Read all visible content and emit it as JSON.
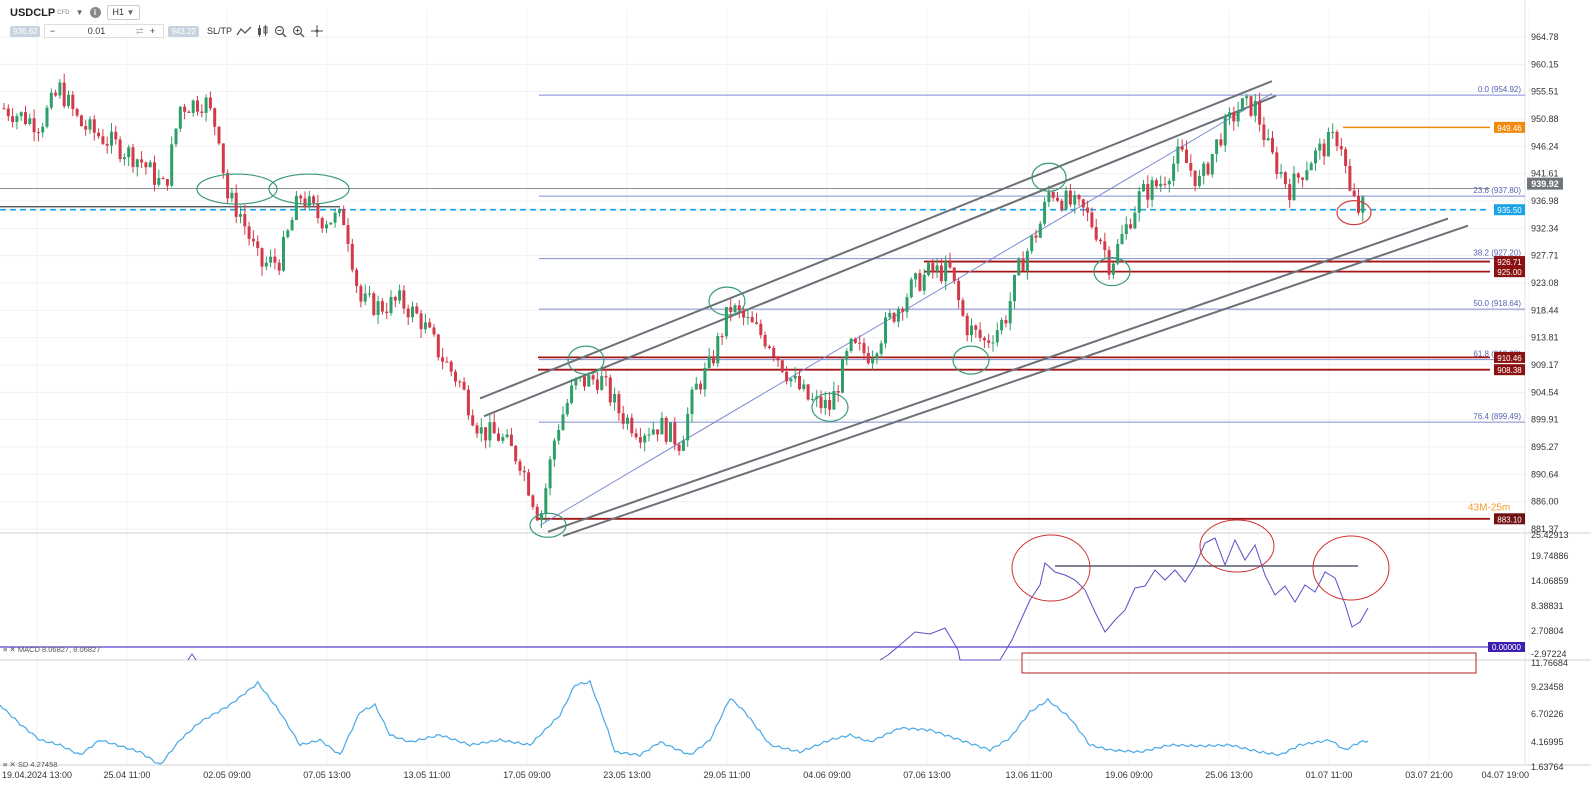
{
  "toolbar": {
    "symbol": "USDCLP",
    "symbol_suffix": "CFD",
    "dropdown_arrow": "▼",
    "info_icon": "i",
    "timeframe": "H1",
    "sell_price": "936.62",
    "buy_price": "943.22",
    "quantity": "0.01",
    "minus": "−",
    "plus": "+",
    "sltp_label": "SL/TP",
    "tools": [
      "line-chart-icon",
      "candle-chart-icon",
      "zoom-out-icon",
      "zoom-in-icon",
      "crosshair-icon"
    ]
  },
  "price_axis": [
    "964.78",
    "960.15",
    "955.51",
    "950.88",
    "946.24",
    "941.61",
    "936.98",
    "932.34",
    "927.71",
    "923.08",
    "918.44",
    "913.81",
    "909.17",
    "904.54",
    "899.91",
    "895.27",
    "890.64",
    "886.00",
    "881.37"
  ],
  "rsi_axis": [
    "25.42913",
    "19.74886",
    "14.06859",
    "8.38831",
    "2.70804",
    "-2.97224"
  ],
  "sd_axis": [
    "11.76684",
    "9.23458",
    "6.70226",
    "4.16995",
    "1.63764"
  ],
  "time_axis": [
    "19.04.2024 13:00",
    "25.04 11:00",
    "02.05 09:00",
    "07.05 13:00",
    "13.05 11:00",
    "17.05 09:00",
    "23.05 13:00",
    "29.05 11:00",
    "04.06 09:00",
    "07.06 13:00",
    "13.06 11:00",
    "19.06 09:00",
    "25.06 13:00",
    "01.07 11:00",
    "03.07 21:00",
    "04.07 19:00"
  ],
  "fib_labels": [
    "0.0 (954.92)",
    "23.6 (937.80)",
    "38.2 (927.20)",
    "50.0 (918.64)",
    "61.8 (910.08)",
    "76.4 (899.49)"
  ],
  "price_tags": {
    "current": "939.92",
    "orange": "949.46",
    "dashed": "935.50",
    "res_a": "926.71",
    "res_b": "925.00",
    "sup_a": "910.46",
    "sup_b": "908.38",
    "bottom": "883.10",
    "ma_overlay": "43M-25m",
    "macd_zero": "0.00000"
  },
  "indicators": {
    "macd_label": "MACD 8.06827, 8.06827",
    "sd_label": "SD 4.27458"
  },
  "colors": {
    "bull": "#2e9e6a",
    "bear": "#d23a4a",
    "level_red": "#a31515",
    "dashed_blue": "#1aa3e8",
    "orange": "#f0890c",
    "fib": "#7f8cd0",
    "channel": "#6b7178",
    "indicator": "#5a50c8",
    "sd_line": "#48a9e6",
    "macd_tag": "#3d1fb0"
  }
}
